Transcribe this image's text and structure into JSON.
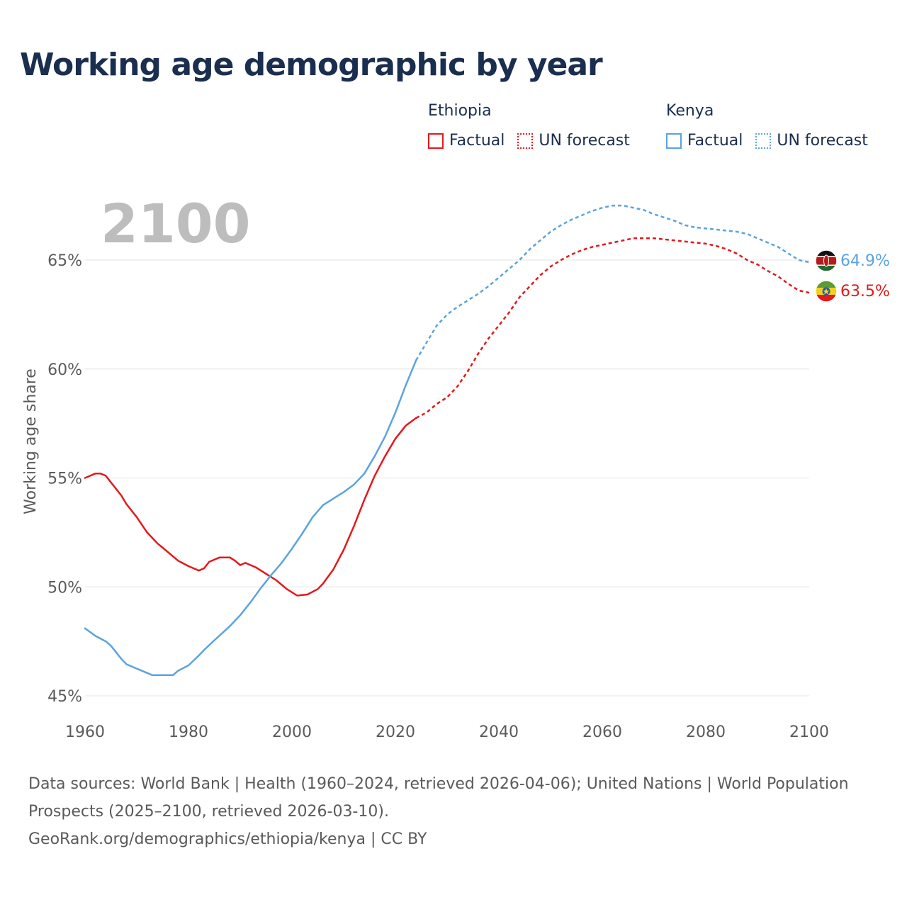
{
  "title": "Working age demographic by year",
  "legend": [
    {
      "country": "Ethiopia",
      "factual_label": "Factual",
      "forecast_label": "UN forecast",
      "color": "#e3191c"
    },
    {
      "country": "Kenya",
      "factual_label": "Factual",
      "forecast_label": "UN forecast",
      "color": "#5ba3e0"
    }
  ],
  "footer": {
    "sources": "Data sources: World Bank | Health (1960–2024, retrieved 2026-04-06); United Nations | World Population Prospects (2025–2100, retrieved 2026-03-10).",
    "url_license": "GeoRank.org/demographics/ethiopia/kenya | CC BY"
  },
  "chart_data": {
    "type": "line",
    "title": "Working age demographic by year",
    "year_label": "2100",
    "xlabel": "",
    "ylabel": "Working age share",
    "xlim": [
      1960,
      2100
    ],
    "ylim": [
      45,
      68
    ],
    "x_ticks": [
      1960,
      1980,
      2000,
      2020,
      2040,
      2060,
      2080,
      2100
    ],
    "x_tick_labels": [
      "1960",
      "1980",
      "2000",
      "2020",
      "2040",
      "2060",
      "2080",
      "2100"
    ],
    "y_ticks": [
      45,
      50,
      55,
      60,
      65
    ],
    "y_tick_labels": [
      "45%",
      "50%",
      "55%",
      "60%",
      "65%"
    ],
    "grid": true,
    "factual_end_year": 2024,
    "series": [
      {
        "name": "Ethiopia",
        "color": "#e3191c",
        "end_label": "63.5%",
        "flag": "ethiopia-flag",
        "points": [
          [
            1960,
            55.0
          ],
          [
            1961,
            55.1
          ],
          [
            1962,
            55.2
          ],
          [
            1963,
            55.2
          ],
          [
            1964,
            55.1
          ],
          [
            1965,
            54.8
          ],
          [
            1967,
            54.2
          ],
          [
            1968,
            53.8
          ],
          [
            1970,
            53.2
          ],
          [
            1972,
            52.5
          ],
          [
            1974,
            52.0
          ],
          [
            1976,
            51.6
          ],
          [
            1978,
            51.2
          ],
          [
            1980,
            50.95
          ],
          [
            1982,
            50.75
          ],
          [
            1983,
            50.85
          ],
          [
            1984,
            51.15
          ],
          [
            1986,
            51.35
          ],
          [
            1988,
            51.35
          ],
          [
            1989,
            51.2
          ],
          [
            1990,
            51.0
          ],
          [
            1991,
            51.1
          ],
          [
            1993,
            50.9
          ],
          [
            1995,
            50.6
          ],
          [
            1997,
            50.3
          ],
          [
            1999,
            49.9
          ],
          [
            2001,
            49.6
          ],
          [
            2003,
            49.65
          ],
          [
            2005,
            49.9
          ],
          [
            2006,
            50.15
          ],
          [
            2008,
            50.8
          ],
          [
            2010,
            51.7
          ],
          [
            2012,
            52.8
          ],
          [
            2014,
            54.0
          ],
          [
            2016,
            55.1
          ],
          [
            2018,
            56.0
          ],
          [
            2020,
            56.8
          ],
          [
            2022,
            57.4
          ],
          [
            2024,
            57.75
          ],
          [
            2026,
            58.0
          ],
          [
            2028,
            58.4
          ],
          [
            2030,
            58.7
          ],
          [
            2032,
            59.2
          ],
          [
            2034,
            59.9
          ],
          [
            2036,
            60.7
          ],
          [
            2038,
            61.4
          ],
          [
            2040,
            62.0
          ],
          [
            2042,
            62.6
          ],
          [
            2044,
            63.3
          ],
          [
            2046,
            63.8
          ],
          [
            2048,
            64.3
          ],
          [
            2050,
            64.7
          ],
          [
            2052,
            65.0
          ],
          [
            2054,
            65.25
          ],
          [
            2056,
            65.45
          ],
          [
            2058,
            65.6
          ],
          [
            2060,
            65.7
          ],
          [
            2062,
            65.8
          ],
          [
            2064,
            65.9
          ],
          [
            2066,
            66.0
          ],
          [
            2068,
            66.0
          ],
          [
            2070,
            66.0
          ],
          [
            2072,
            65.95
          ],
          [
            2074,
            65.9
          ],
          [
            2076,
            65.85
          ],
          [
            2078,
            65.8
          ],
          [
            2080,
            65.75
          ],
          [
            2082,
            65.65
          ],
          [
            2084,
            65.5
          ],
          [
            2086,
            65.3
          ],
          [
            2088,
            65.0
          ],
          [
            2090,
            64.8
          ],
          [
            2092,
            64.5
          ],
          [
            2094,
            64.25
          ],
          [
            2096,
            63.9
          ],
          [
            2098,
            63.6
          ],
          [
            2100,
            63.5
          ]
        ]
      },
      {
        "name": "Kenya",
        "color": "#5ba3e0",
        "end_label": "64.9%",
        "flag": "kenya-flag",
        "points": [
          [
            1960,
            48.1
          ],
          [
            1962,
            47.75
          ],
          [
            1964,
            47.5
          ],
          [
            1965,
            47.3
          ],
          [
            1967,
            46.7
          ],
          [
            1968,
            46.45
          ],
          [
            1970,
            46.25
          ],
          [
            1972,
            46.05
          ],
          [
            1973,
            45.95
          ],
          [
            1977,
            45.95
          ],
          [
            1978,
            46.15
          ],
          [
            1980,
            46.4
          ],
          [
            1982,
            46.85
          ],
          [
            1983,
            47.1
          ],
          [
            1985,
            47.55
          ],
          [
            1988,
            48.2
          ],
          [
            1990,
            48.7
          ],
          [
            1992,
            49.3
          ],
          [
            1994,
            49.95
          ],
          [
            1996,
            50.55
          ],
          [
            1998,
            51.1
          ],
          [
            2000,
            51.75
          ],
          [
            2002,
            52.45
          ],
          [
            2004,
            53.2
          ],
          [
            2006,
            53.75
          ],
          [
            2008,
            54.05
          ],
          [
            2010,
            54.35
          ],
          [
            2012,
            54.7
          ],
          [
            2014,
            55.2
          ],
          [
            2016,
            56.0
          ],
          [
            2018,
            56.9
          ],
          [
            2020,
            58.0
          ],
          [
            2022,
            59.25
          ],
          [
            2024,
            60.4
          ],
          [
            2026,
            61.2
          ],
          [
            2028,
            62.0
          ],
          [
            2030,
            62.5
          ],
          [
            2032,
            62.85
          ],
          [
            2034,
            63.15
          ],
          [
            2036,
            63.45
          ],
          [
            2038,
            63.8
          ],
          [
            2040,
            64.2
          ],
          [
            2042,
            64.6
          ],
          [
            2044,
            65.0
          ],
          [
            2046,
            65.5
          ],
          [
            2048,
            65.9
          ],
          [
            2050,
            66.3
          ],
          [
            2052,
            66.6
          ],
          [
            2054,
            66.85
          ],
          [
            2056,
            67.05
          ],
          [
            2058,
            67.25
          ],
          [
            2060,
            67.4
          ],
          [
            2062,
            67.5
          ],
          [
            2064,
            67.5
          ],
          [
            2066,
            67.4
          ],
          [
            2068,
            67.3
          ],
          [
            2070,
            67.1
          ],
          [
            2072,
            66.95
          ],
          [
            2074,
            66.8
          ],
          [
            2076,
            66.6
          ],
          [
            2078,
            66.5
          ],
          [
            2080,
            66.45
          ],
          [
            2082,
            66.4
          ],
          [
            2084,
            66.35
          ],
          [
            2086,
            66.3
          ],
          [
            2088,
            66.2
          ],
          [
            2090,
            66.0
          ],
          [
            2092,
            65.8
          ],
          [
            2094,
            65.6
          ],
          [
            2096,
            65.3
          ],
          [
            2098,
            65.0
          ],
          [
            2100,
            64.9
          ]
        ]
      }
    ]
  }
}
